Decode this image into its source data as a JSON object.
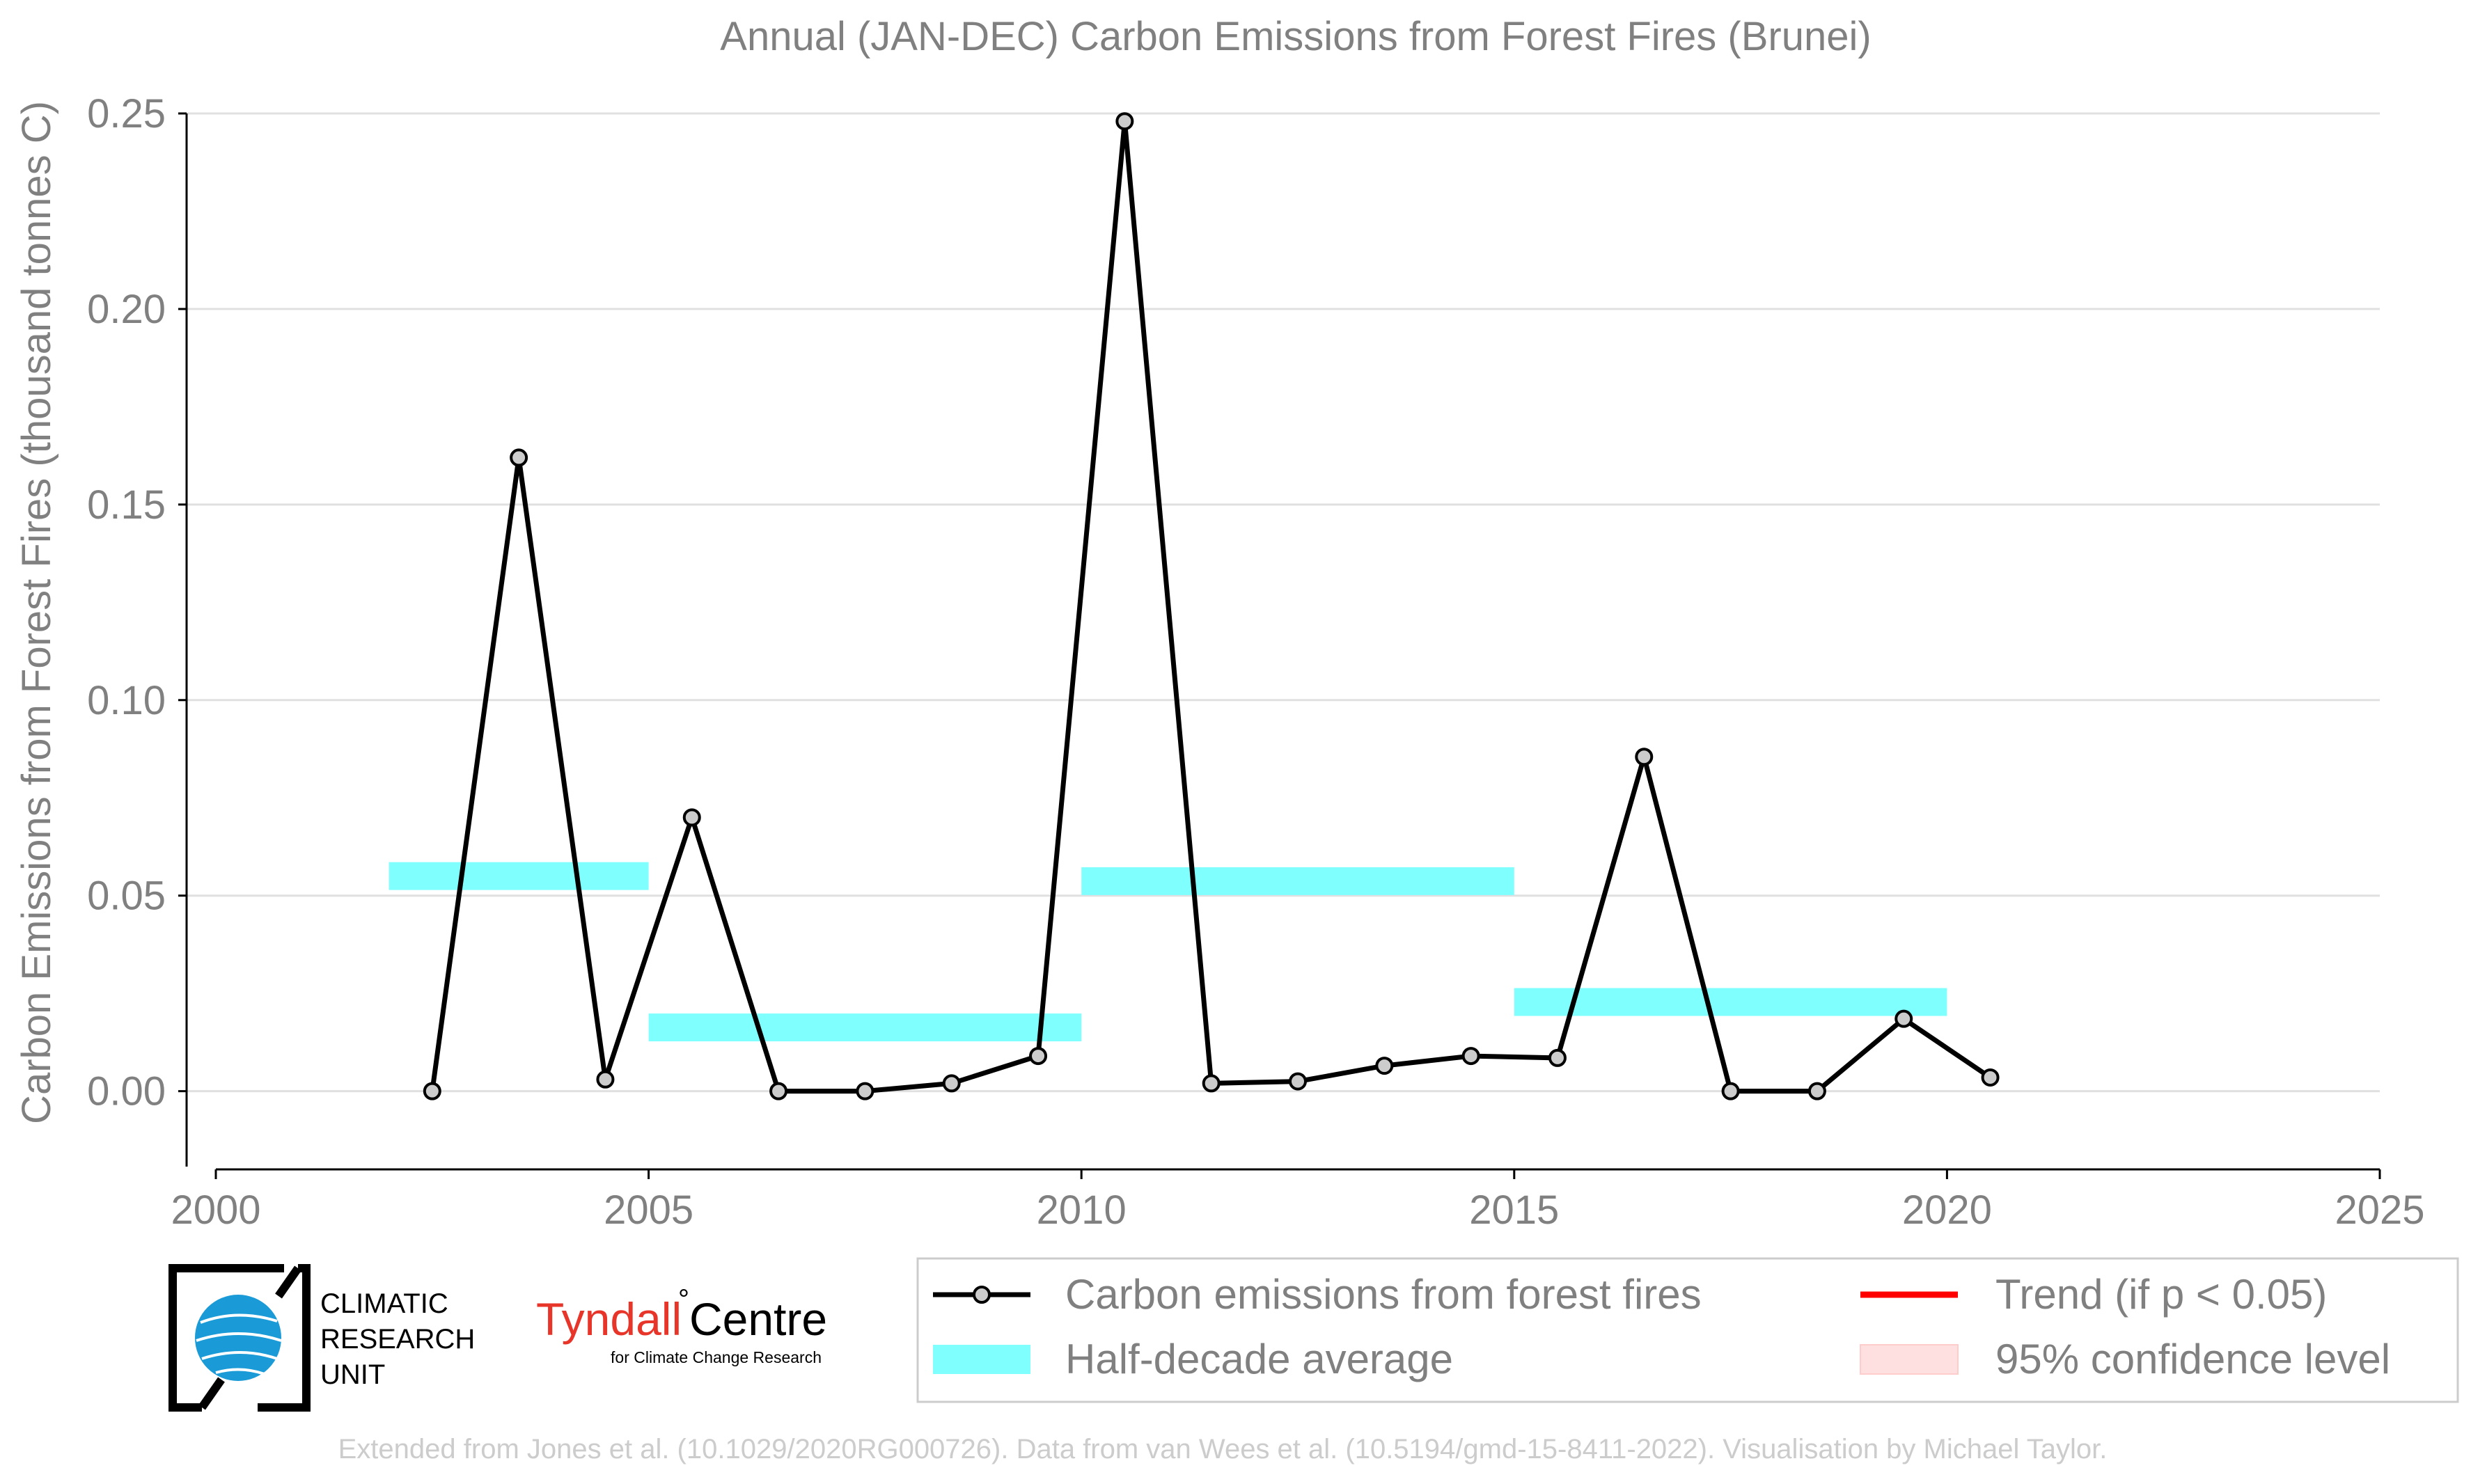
{
  "chart_data": {
    "type": "line",
    "title": "Annual (JAN-DEC) Carbon Emissions from Forest Fires (Brunei)",
    "xlabel": "",
    "ylabel": "Carbon Emissions from Forest Fires (thousand tonnes C)",
    "xlim": [
      2000,
      2025
    ],
    "ylim": [
      -0.02,
      0.25
    ],
    "x_ticks": [
      2000,
      2005,
      2010,
      2015,
      2020,
      2025
    ],
    "x_tick_labels": [
      "2000",
      "2005",
      "2010",
      "2015",
      "2020",
      "2025"
    ],
    "y_ticks": [
      0.0,
      0.05,
      0.1,
      0.15,
      0.2,
      0.25
    ],
    "y_tick_labels": [
      "0.00",
      "0.05",
      "0.10",
      "0.15",
      "0.20",
      "0.25"
    ],
    "grid": "horizontal",
    "series": [
      {
        "name": "Carbon emissions from forest fires",
        "color": "#000000",
        "marker_fill": "#cccccc",
        "x": [
          2002.5,
          2003.5,
          2004.5,
          2005.5,
          2006.5,
          2007.5,
          2008.5,
          2009.5,
          2010.5,
          2011.5,
          2012.5,
          2013.5,
          2014.5,
          2015.5,
          2016.5,
          2017.5,
          2018.5,
          2019.5,
          2020.5
        ],
        "values": [
          0.0,
          0.162,
          0.003,
          0.07,
          0.0,
          0.0,
          0.002,
          0.009,
          0.248,
          0.002,
          0.0025,
          0.0065,
          0.009,
          0.0085,
          0.0855,
          0.0,
          0.0,
          0.0185,
          0.0035
        ]
      }
    ],
    "half_decade_averages": {
      "name": "Half-decade average",
      "color": "#80ffff",
      "segments": [
        {
          "x_start": 2002,
          "x_end": 2005,
          "value": 0.055
        },
        {
          "x_start": 2005,
          "x_end": 2010,
          "value": 0.0163
        },
        {
          "x_start": 2010,
          "x_end": 2015,
          "value": 0.0537
        },
        {
          "x_start": 2015,
          "x_end": 2020,
          "value": 0.0228
        }
      ]
    },
    "legend": {
      "position": "bottom-right",
      "entries": [
        {
          "label": "Carbon emissions from forest fires",
          "kind": "line-marker",
          "color": "#000000"
        },
        {
          "label": "Trend (if p < 0.05)",
          "kind": "line",
          "color": "#ff0000"
        },
        {
          "label": "Half-decade average",
          "kind": "band",
          "color": "#80ffff"
        },
        {
          "label": "95% confidence level",
          "kind": "band",
          "color": "#ffe0e0"
        }
      ]
    }
  },
  "logos": {
    "cru_lines": [
      "CLIMATIC",
      "RESEARCH",
      "UNIT"
    ],
    "tyndall_name": "Tyndall",
    "tyndall_degree": "°",
    "tyndall_centre": "Centre",
    "tyndall_sub": "for Climate Change Research"
  },
  "footer": {
    "credit": "Extended from Jones et al. (10.1029/2020RG000726). Data from van Wees et al. (10.5194/gmd-15-8411-2022). Visualisation by Michael Taylor."
  },
  "colors": {
    "axis_text": "#808080",
    "grid": "#e0e0e0",
    "footer_text": "#cccccc",
    "tyndall_red": "#e8352a",
    "cru_blue": "#1a9ad6"
  }
}
